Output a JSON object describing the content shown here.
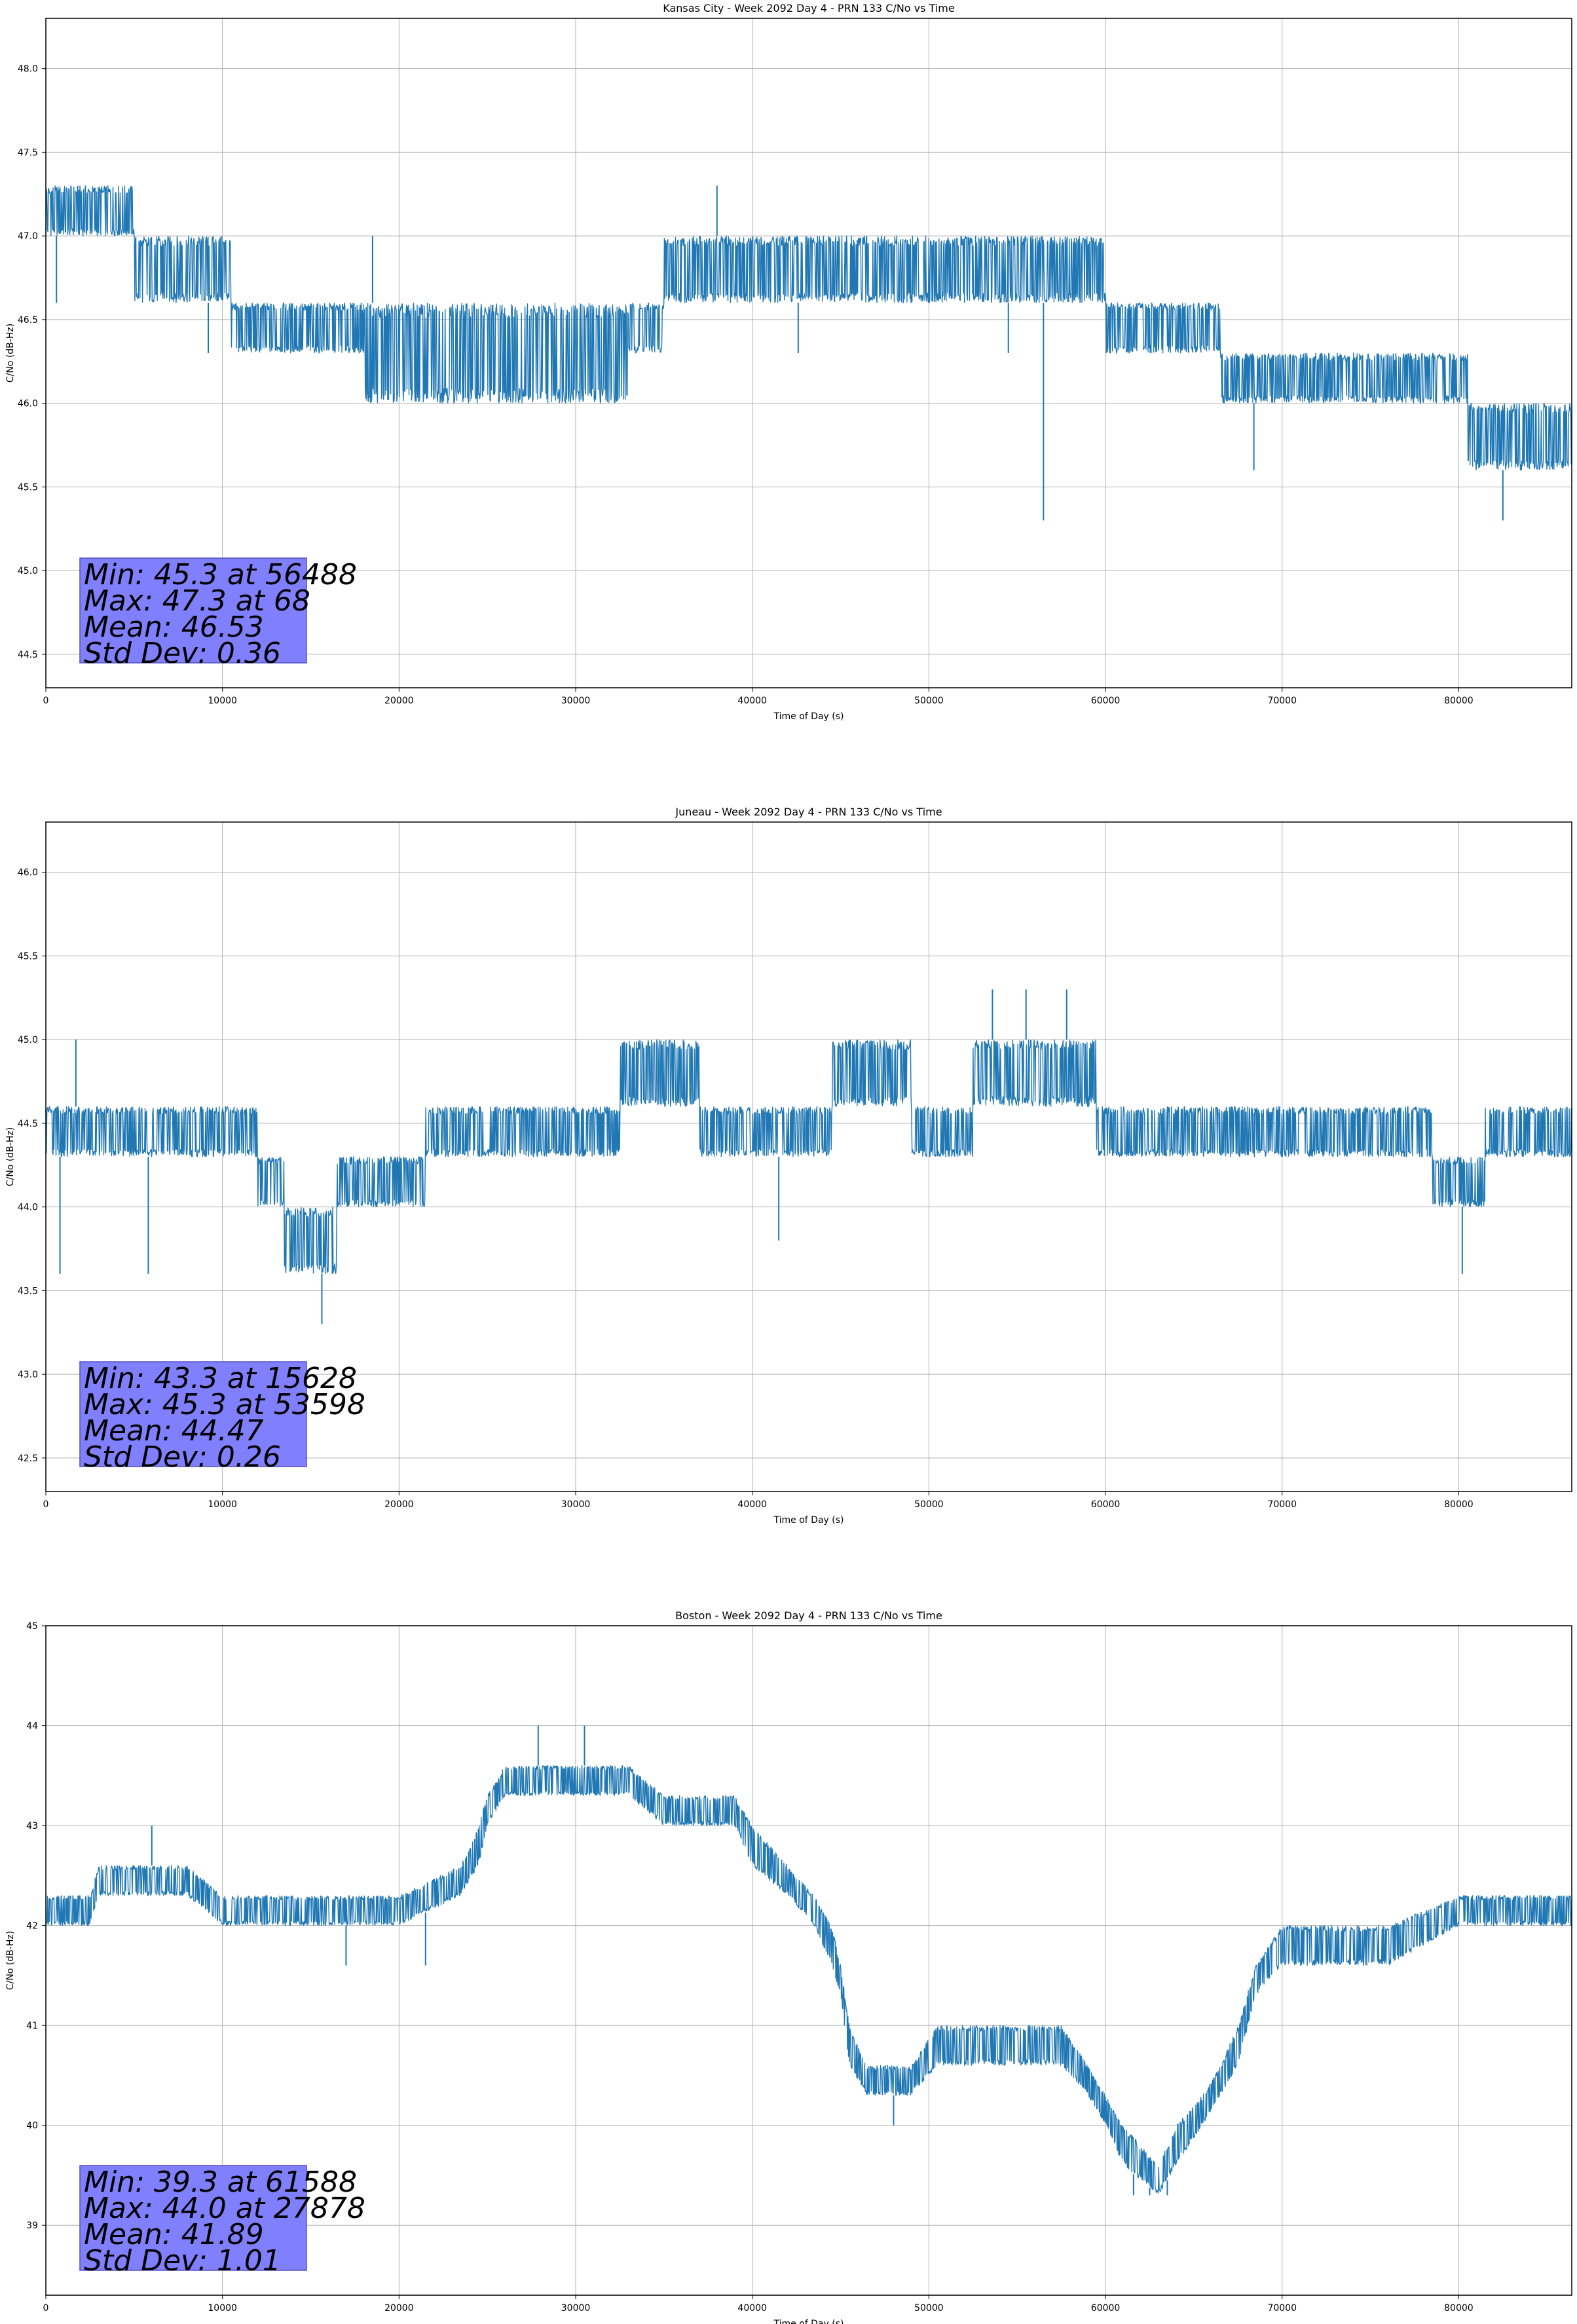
{
  "chart_data": [
    {
      "type": "line",
      "title": "Kansas City - Week 2092 Day 4 - PRN 133 C/No vs Time",
      "xlabel": "Time of Day (s)",
      "ylabel": "C/No (dB-Hz)",
      "xlim": [
        0,
        86400
      ],
      "ylim": [
        44.3,
        48.3
      ],
      "xticks": [
        0,
        10000,
        20000,
        30000,
        40000,
        50000,
        60000,
        70000,
        80000
      ],
      "yticks": [
        44.5,
        45.0,
        45.5,
        46.0,
        46.5,
        47.0,
        47.5,
        48.0
      ],
      "ytick_decimals": 1,
      "grid": true,
      "color": "#1f77b4",
      "series": [
        {
          "x": [
            0,
            5000,
            5000,
            10500,
            10500,
            18000,
            18000,
            33000,
            33000,
            35000,
            35000,
            50000,
            50000,
            60000,
            60000,
            66500,
            66500,
            78500,
            78500,
            80500,
            80500,
            86400
          ],
          "low": [
            47.0,
            47.0,
            46.6,
            46.6,
            46.3,
            46.3,
            46.0,
            46.0,
            46.3,
            46.3,
            46.6,
            46.6,
            46.6,
            46.6,
            46.3,
            46.3,
            46.0,
            46.0,
            46.0,
            46.0,
            45.6,
            45.6
          ],
          "high": [
            47.3,
            47.3,
            47.0,
            47.0,
            46.6,
            46.6,
            46.6,
            46.6,
            46.6,
            46.6,
            47.0,
            47.0,
            47.0,
            47.0,
            46.6,
            46.6,
            46.3,
            46.3,
            46.3,
            46.3,
            46.0,
            46.0
          ]
        }
      ],
      "spikes": [
        {
          "x": 56488,
          "y": 45.3
        },
        {
          "x": 82500,
          "y": 45.3
        },
        {
          "x": 68400,
          "y": 45.6
        },
        {
          "x": 9200,
          "y": 46.3
        },
        {
          "x": 42600,
          "y": 46.3
        },
        {
          "x": 54500,
          "y": 46.3
        },
        {
          "x": 18500,
          "y": 47.0
        },
        {
          "x": 38000,
          "y": 47.3
        },
        {
          "x": 600,
          "y": 46.6
        }
      ],
      "stats": [
        "Min: 45.3 at 56488",
        "Max: 47.3 at 68",
        "Mean: 46.53",
        "Std Dev: 0.36"
      ]
    },
    {
      "type": "line",
      "title": "Juneau - Week 2092 Day 4 - PRN 133 C/No vs Time",
      "xlabel": "Time of Day (s)",
      "ylabel": "C/No (dB-Hz)",
      "xlim": [
        0,
        86400
      ],
      "ylim": [
        42.3,
        46.3
      ],
      "xticks": [
        0,
        10000,
        20000,
        30000,
        40000,
        50000,
        60000,
        70000,
        80000
      ],
      "yticks": [
        42.5,
        43.0,
        43.5,
        44.0,
        44.5,
        45.0,
        45.5,
        46.0
      ],
      "ytick_decimals": 1,
      "grid": true,
      "color": "#1f77b4",
      "series": [
        {
          "x": [
            0,
            12000,
            12000,
            13500,
            13500,
            16500,
            16500,
            21500,
            21500,
            32500,
            32500,
            37000,
            37000,
            44500,
            44500,
            49000,
            49000,
            52500,
            52500,
            59500,
            59500,
            78500,
            78500,
            81500,
            81500,
            86400
          ],
          "low": [
            44.3,
            44.3,
            44.0,
            44.0,
            43.6,
            43.6,
            44.0,
            44.0,
            44.3,
            44.3,
            44.6,
            44.6,
            44.3,
            44.3,
            44.6,
            44.6,
            44.3,
            44.3,
            44.6,
            44.6,
            44.3,
            44.3,
            44.0,
            44.0,
            44.3,
            44.3
          ],
          "high": [
            44.6,
            44.6,
            44.3,
            44.3,
            44.0,
            44.0,
            44.3,
            44.3,
            44.6,
            44.6,
            45.0,
            45.0,
            44.6,
            44.6,
            45.0,
            45.0,
            44.6,
            44.6,
            45.0,
            45.0,
            44.6,
            44.6,
            44.3,
            44.3,
            44.6,
            44.6
          ]
        }
      ],
      "spikes": [
        {
          "x": 15628,
          "y": 43.3
        },
        {
          "x": 800,
          "y": 43.6
        },
        {
          "x": 5800,
          "y": 43.6
        },
        {
          "x": 80200,
          "y": 43.6
        },
        {
          "x": 41500,
          "y": 43.8
        },
        {
          "x": 1700,
          "y": 45.0
        },
        {
          "x": 53598,
          "y": 45.3
        },
        {
          "x": 55500,
          "y": 45.3
        },
        {
          "x": 57800,
          "y": 45.3
        }
      ],
      "stats": [
        "Min: 43.3 at 15628",
        "Max: 45.3 at 53598",
        "Mean: 44.47",
        "Std Dev: 0.26"
      ]
    },
    {
      "type": "line",
      "title": "Boston - Week 2092 Day 4 - PRN 133 C/No vs Time",
      "xlabel": "Time of Day (s)",
      "ylabel": "C/No (dB-Hz)",
      "xlim": [
        0,
        86400
      ],
      "ylim": [
        38.3,
        45
      ],
      "xticks": [
        0,
        10000,
        20000,
        30000,
        40000,
        50000,
        60000,
        70000,
        80000
      ],
      "yticks": [
        39,
        40,
        41,
        42,
        43,
        44,
        45
      ],
      "ytick_decimals": 0,
      "grid": true,
      "color": "#1f77b4",
      "series": [
        {
          "x": [
            0,
            2500,
            3000,
            8000,
            10000,
            15000,
            20000,
            23500,
            24500,
            25000,
            26000,
            27000,
            28000,
            30000,
            33000,
            35000,
            39000,
            40000,
            42000,
            43500,
            44500,
            45000,
            45500,
            46500,
            49000,
            50500,
            52000,
            53500,
            55000,
            57500,
            59000,
            60000,
            61000,
            63000,
            64000,
            65500,
            66500,
            67500,
            68500,
            70000,
            73000,
            76000,
            80000,
            83000,
            86400
          ],
          "low": [
            42.0,
            42.0,
            42.3,
            42.3,
            42.0,
            42.0,
            42.0,
            42.3,
            42.6,
            43.0,
            43.3,
            43.3,
            43.3,
            43.3,
            43.3,
            43.0,
            43.0,
            42.6,
            42.3,
            42.0,
            41.6,
            41.3,
            40.6,
            40.3,
            40.3,
            40.6,
            40.6,
            40.6,
            40.6,
            40.6,
            40.3,
            40.0,
            39.6,
            39.3,
            39.6,
            40.0,
            40.3,
            40.6,
            41.3,
            41.6,
            41.6,
            41.6,
            42.0,
            42.0,
            42.0
          ],
          "high": [
            42.3,
            42.3,
            42.6,
            42.6,
            42.3,
            42.3,
            42.3,
            42.6,
            43.0,
            43.3,
            43.6,
            43.6,
            43.6,
            43.6,
            43.6,
            43.3,
            43.3,
            43.0,
            42.6,
            42.3,
            42.0,
            41.6,
            41.0,
            40.6,
            40.6,
            41.0,
            41.0,
            41.0,
            41.0,
            41.0,
            40.6,
            40.3,
            40.0,
            39.6,
            40.0,
            40.3,
            40.6,
            41.0,
            41.6,
            42.0,
            42.0,
            42.0,
            42.3,
            42.3,
            42.3
          ]
        }
      ],
      "spikes": [
        {
          "x": 27878,
          "y": 44.0
        },
        {
          "x": 30500,
          "y": 44.0
        },
        {
          "x": 6000,
          "y": 43.0
        },
        {
          "x": 61588,
          "y": 39.3
        },
        {
          "x": 62500,
          "y": 39.3
        },
        {
          "x": 63500,
          "y": 39.3
        },
        {
          "x": 48000,
          "y": 40.0
        },
        {
          "x": 17000,
          "y": 41.6
        },
        {
          "x": 21500,
          "y": 41.6
        }
      ],
      "stats": [
        "Min: 39.3 at 61588",
        "Max: 44.0 at 27878",
        "Mean: 41.89",
        "Std Dev: 1.01"
      ]
    }
  ]
}
